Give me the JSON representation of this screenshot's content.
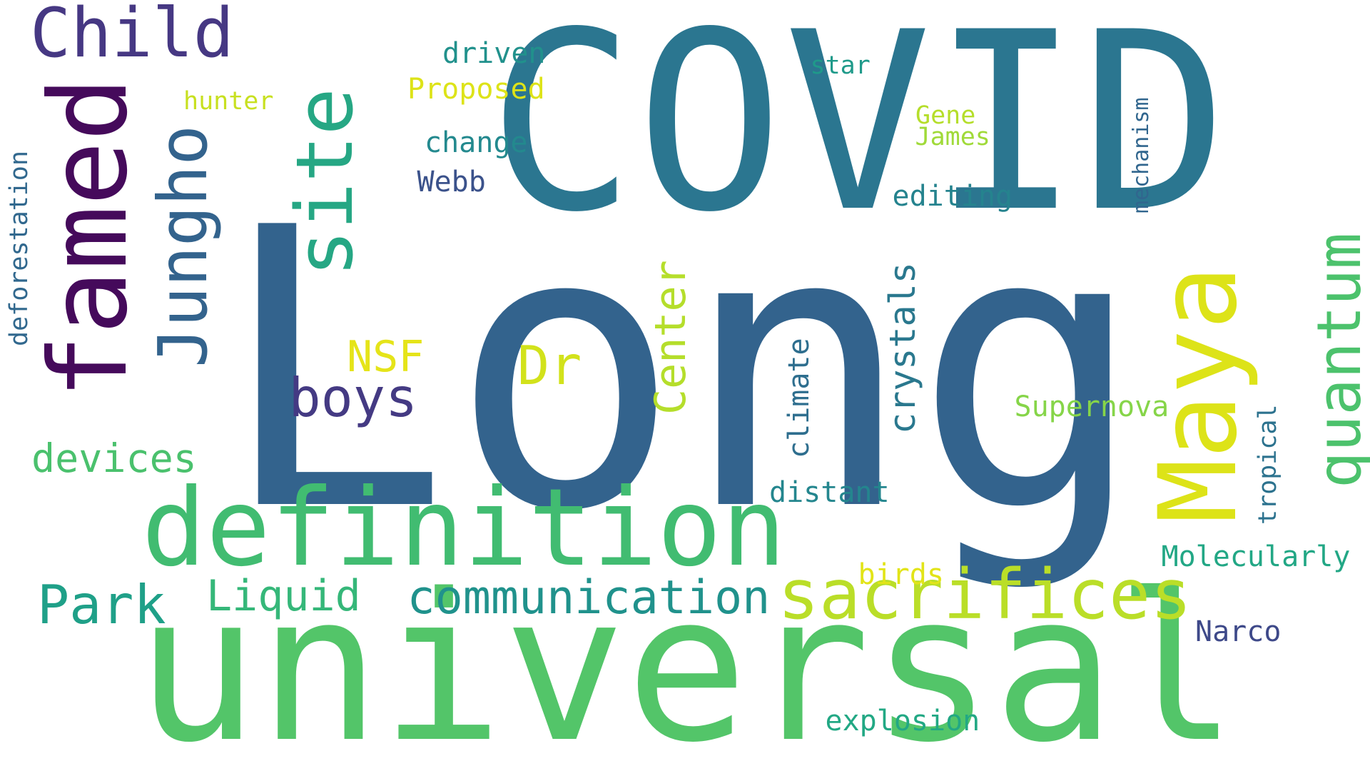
{
  "words": [
    {
      "text": "COVID",
      "color": "#2b7690",
      "orientation": "horizontal"
    },
    {
      "text": "Long",
      "color": "#33638d",
      "orientation": "horizontal"
    },
    {
      "text": "universal",
      "color": "#53c569",
      "orientation": "horizontal"
    },
    {
      "text": "definition",
      "color": "#41bc71",
      "orientation": "horizontal"
    },
    {
      "text": "famed",
      "color": "#450a5b",
      "orientation": "vertical"
    },
    {
      "text": "site",
      "color": "#26a784",
      "orientation": "vertical"
    },
    {
      "text": "Child",
      "color": "#463883",
      "orientation": "horizontal"
    },
    {
      "text": "Maya",
      "color": "#dde318",
      "orientation": "vertical"
    },
    {
      "text": "quantum",
      "color": "#4cc26c",
      "orientation": "vertical"
    },
    {
      "text": "sacrifices",
      "color": "#bade28",
      "orientation": "horizontal"
    },
    {
      "text": "Jungho",
      "color": "#33638d",
      "orientation": "vertical"
    },
    {
      "text": "boys",
      "color": "#443a83",
      "orientation": "horizontal"
    },
    {
      "text": "Dr",
      "color": "#d2e21b",
      "orientation": "horizontal"
    },
    {
      "text": "Park",
      "color": "#1fa088",
      "orientation": "horizontal"
    },
    {
      "text": "communication",
      "color": "#20928c",
      "orientation": "horizontal"
    },
    {
      "text": "crystals",
      "color": "#2a788e",
      "orientation": "vertical"
    },
    {
      "text": "Center",
      "color": "#b5de2b",
      "orientation": "vertical"
    },
    {
      "text": "Liquid",
      "color": "#35b779",
      "orientation": "horizontal"
    },
    {
      "text": "devices",
      "color": "#4ac16d",
      "orientation": "horizontal"
    },
    {
      "text": "NSF",
      "color": "#e5e419",
      "orientation": "horizontal"
    },
    {
      "text": "deforestation",
      "color": "#31688e",
      "orientation": "vertical"
    },
    {
      "text": "Supernova",
      "color": "#86d549",
      "orientation": "horizontal"
    },
    {
      "text": "Molecularly",
      "color": "#22a785",
      "orientation": "horizontal"
    },
    {
      "text": "climate",
      "color": "#2e6e8e",
      "orientation": "vertical"
    },
    {
      "text": "distant",
      "color": "#24868e",
      "orientation": "horizontal"
    },
    {
      "text": "tropical",
      "color": "#2c728e",
      "orientation": "vertical"
    },
    {
      "text": "mechanism",
      "color": "#31668e",
      "orientation": "vertical"
    },
    {
      "text": "editing",
      "color": "#25838e",
      "orientation": "horizontal"
    },
    {
      "text": "explosion",
      "color": "#22a884",
      "orientation": "horizontal"
    },
    {
      "text": "Narco",
      "color": "#3e4989",
      "orientation": "horizontal"
    },
    {
      "text": "driven",
      "color": "#21918c",
      "orientation": "horizontal"
    },
    {
      "text": "Proposed",
      "color": "#dde318",
      "orientation": "horizontal"
    },
    {
      "text": "hunter",
      "color": "#c8e020",
      "orientation": "horizontal"
    },
    {
      "text": "change",
      "color": "#23898e",
      "orientation": "horizontal"
    },
    {
      "text": "Webb",
      "color": "#3b528b",
      "orientation": "horizontal"
    },
    {
      "text": "star",
      "color": "#1f9a8a",
      "orientation": "horizontal"
    },
    {
      "text": "Gene",
      "color": "#b5de2b",
      "orientation": "horizontal"
    },
    {
      "text": "James",
      "color": "#a0da39",
      "orientation": "horizontal"
    },
    {
      "text": "birds",
      "color": "#e2e418",
      "orientation": "horizontal"
    }
  ]
}
